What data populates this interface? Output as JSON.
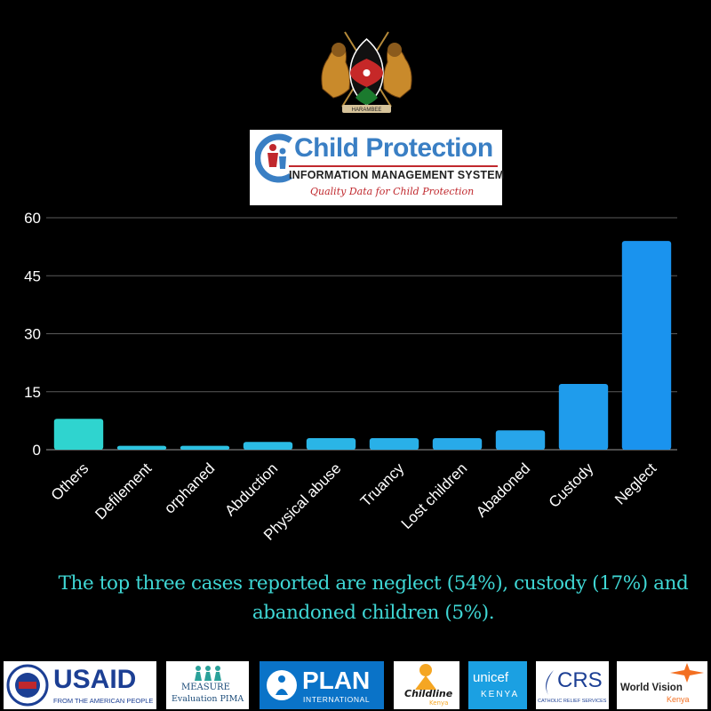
{
  "logos": {
    "coat_of_arms_motto": "HARAMBEE",
    "cpims": {
      "title": "Child Protection",
      "subtitle": "INFORMATION MANAGEMENT SYSTEM",
      "tagline": "Quality Data for Child Protection"
    }
  },
  "chart_data": {
    "type": "bar",
    "categories": [
      "Others",
      "Defilement",
      "orphaned",
      "Abduction",
      "Physical abuse",
      "Truancy",
      "Lost children",
      "Abadoned",
      "Custody",
      "Neglect"
    ],
    "values": [
      8,
      1,
      1,
      2,
      3,
      3,
      3,
      5,
      17,
      54
    ],
    "ylim": [
      0,
      60
    ],
    "yticks": [
      0,
      15,
      30,
      45,
      60
    ],
    "grid": true,
    "legend": "none",
    "title": "",
    "xlabel": "",
    "ylabel": "",
    "colors": [
      "#2fd4cf",
      "#2ec5e0",
      "#2cc0e2",
      "#2bbbe4",
      "#2ab5e6",
      "#29b0e8",
      "#28aae9",
      "#27a5ea",
      "#1f9cec",
      "#1a93ee"
    ]
  },
  "caption": "The top three cases reported are neglect (54%), custody (17%) and abandoned children (5%).",
  "partners": {
    "usaid": {
      "name": "USAID",
      "sub": "FROM THE AMERICAN PEOPLE"
    },
    "measure": {
      "name": "MEASURE",
      "sub": "Evaluation PIMA"
    },
    "plan": {
      "name": "PLAN",
      "sub": "INTERNATIONAL"
    },
    "childline": {
      "name": "Childline",
      "sub": "Kenya"
    },
    "unicef": {
      "name": "unicef",
      "sub": "KENYA"
    },
    "crs": {
      "name": "CRS",
      "sub": "CATHOLIC RELIEF SERVICES"
    },
    "worldvision": {
      "name": "World Vision",
      "sub": "Kenya"
    }
  }
}
